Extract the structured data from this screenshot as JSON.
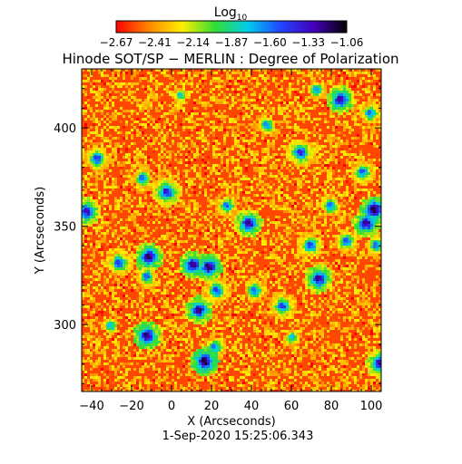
{
  "chart_data": {
    "type": "heatmap",
    "title": "Hinode SOT/SP − MERLIN : Degree of Polarization",
    "colorbar": {
      "label_base": "Log",
      "label_subscript": "10",
      "ticks": [
        "−2.67",
        "−2.41",
        "−2.14",
        "−1.87",
        "−1.60",
        "−1.33",
        "−1.06"
      ],
      "range": [
        -2.67,
        -1.06
      ],
      "colormap": [
        "#ff0000",
        "#ff8800",
        "#ffee00",
        "#33dd33",
        "#00ccee",
        "#2244ff",
        "#4400bb",
        "#000000"
      ]
    },
    "xlabel": "X (Arcseconds)",
    "ylabel": "Y (Arcseconds)",
    "xlim": [
      -45,
      105
    ],
    "ylim": [
      266,
      430
    ],
    "x_ticks": [
      -40,
      -20,
      0,
      20,
      40,
      60,
      80,
      100
    ],
    "y_ticks": [
      300,
      350,
      400
    ],
    "timestamp": "1-Sep-2020 15:25:06.343",
    "grid": false,
    "background_level": -2.55,
    "features": [
      {
        "x": -43,
        "y": 358,
        "level": -1.3
      },
      {
        "x": -38,
        "y": 385,
        "level": -1.5
      },
      {
        "x": -27,
        "y": 332,
        "level": -1.5
      },
      {
        "x": -15,
        "y": 375,
        "level": -1.6
      },
      {
        "x": -12,
        "y": 335,
        "level": -1.2
      },
      {
        "x": -13,
        "y": 325,
        "level": -1.6
      },
      {
        "x": -3,
        "y": 368,
        "level": -1.35
      },
      {
        "x": -13,
        "y": 295,
        "level": -1.2
      },
      {
        "x": 10,
        "y": 331,
        "level": -1.25
      },
      {
        "x": 18,
        "y": 330,
        "level": -1.2
      },
      {
        "x": 22,
        "y": 318,
        "level": -1.5
      },
      {
        "x": 13,
        "y": 308,
        "level": -1.25
      },
      {
        "x": 16,
        "y": 282,
        "level": -1.15
      },
      {
        "x": 21,
        "y": 289,
        "level": -1.6
      },
      {
        "x": 38,
        "y": 352,
        "level": -1.25
      },
      {
        "x": 27,
        "y": 361,
        "level": -1.6
      },
      {
        "x": 41,
        "y": 318,
        "level": -1.6
      },
      {
        "x": 47,
        "y": 402,
        "level": -1.65
      },
      {
        "x": 55,
        "y": 310,
        "level": -1.5
      },
      {
        "x": 64,
        "y": 388,
        "level": -1.4
      },
      {
        "x": 69,
        "y": 341,
        "level": -1.5
      },
      {
        "x": 73,
        "y": 324,
        "level": -1.25
      },
      {
        "x": 79,
        "y": 361,
        "level": -1.6
      },
      {
        "x": 84,
        "y": 415,
        "level": -1.25
      },
      {
        "x": 87,
        "y": 343,
        "level": -1.55
      },
      {
        "x": 95,
        "y": 378,
        "level": -1.55
      },
      {
        "x": 97,
        "y": 352,
        "level": -1.25
      },
      {
        "x": 101,
        "y": 359,
        "level": -1.15
      },
      {
        "x": 102,
        "y": 341,
        "level": -1.6
      },
      {
        "x": 99,
        "y": 408,
        "level": -1.6
      },
      {
        "x": 104,
        "y": 281,
        "level": -1.3
      },
      {
        "x": 60,
        "y": 294,
        "level": -1.75
      },
      {
        "x": 4,
        "y": 417,
        "level": -1.8
      },
      {
        "x": -31,
        "y": 300,
        "level": -1.75
      },
      {
        "x": 72,
        "y": 420,
        "level": -1.7
      }
    ]
  }
}
